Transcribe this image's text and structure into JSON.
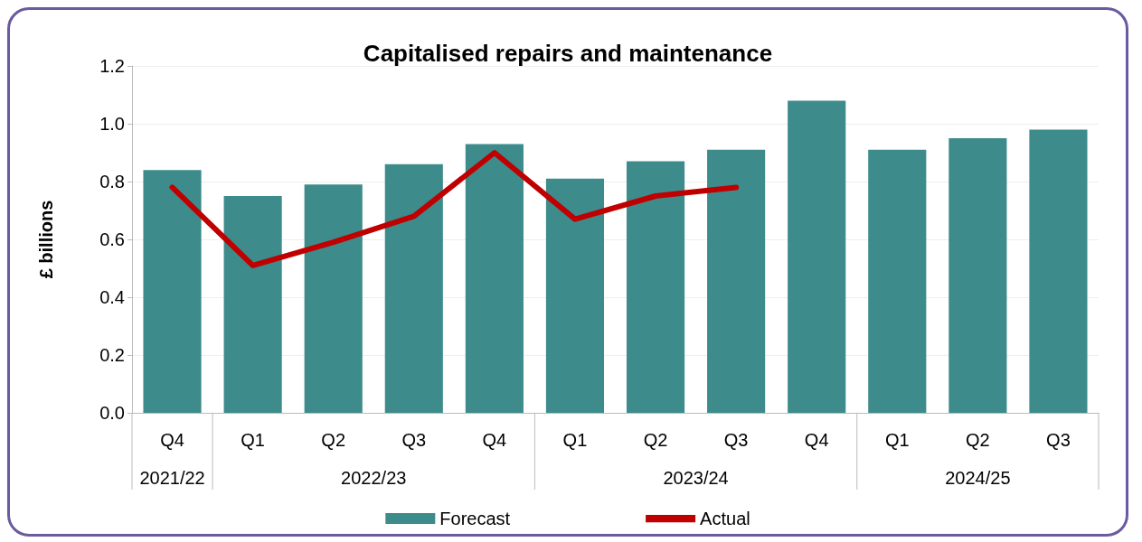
{
  "chart_data": {
    "type": "bar",
    "title": "Capitalised repairs and maintenance",
    "ylabel": "£ billions",
    "categories": [
      "Q4",
      "Q1",
      "Q2",
      "Q3",
      "Q4",
      "Q1",
      "Q2",
      "Q3",
      "Q4",
      "Q1",
      "Q2",
      "Q3"
    ],
    "series": [
      {
        "name": "Forecast",
        "color": "#3d8b8b",
        "values": [
          0.84,
          0.75,
          0.79,
          0.86,
          0.93,
          0.81,
          0.87,
          0.91,
          1.08,
          0.91,
          0.95,
          0.98
        ]
      },
      {
        "name": "Actual",
        "type": "line",
        "color": "#c00000",
        "values": [
          0.78,
          0.51,
          0.59,
          0.68,
          0.9,
          0.67,
          0.75,
          0.78,
          null,
          null,
          null,
          null
        ]
      }
    ],
    "ylim": [
      0,
      1.2
    ],
    "yticks": [
      {
        "value": 0,
        "label": "0.0"
      },
      0.2,
      0.4,
      0.6,
      0.8,
      {
        "value": 1,
        "label": "1.0"
      },
      1.2
    ],
    "grid": "y",
    "legend": "bottom",
    "marker": "none",
    "line_style": "solid",
    "annotations": [
      "2021/22",
      "2022/23",
      "2023/24",
      "2024/25"
    ]
  }
}
